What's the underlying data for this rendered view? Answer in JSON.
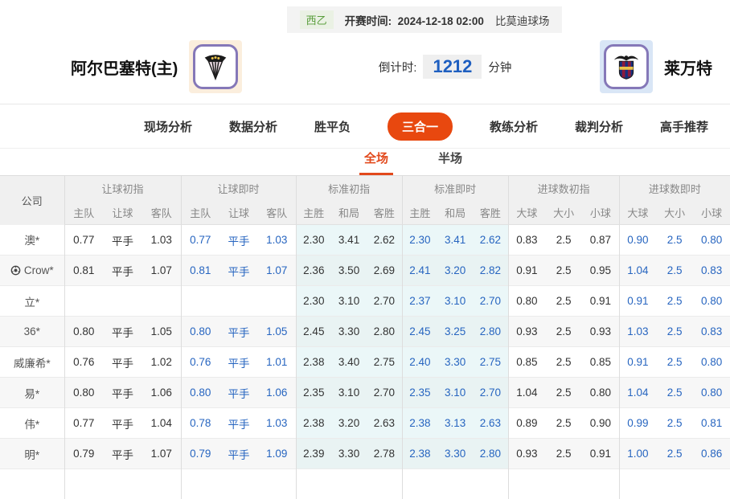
{
  "header": {
    "league": "西乙",
    "kickoff_label": "开赛时间:",
    "kickoff_time": "2024-12-18 02:00",
    "venue": "比莫迪球场"
  },
  "teams": {
    "home": {
      "name": "阿尔巴塞特(主)"
    },
    "away": {
      "name": "莱万特"
    }
  },
  "countdown": {
    "label": "倒计时:",
    "value": "1212",
    "unit": "分钟"
  },
  "nav": {
    "items": [
      {
        "key": "live-analysis",
        "label": "现场分析",
        "active": false
      },
      {
        "key": "data-analysis",
        "label": "数据分析",
        "active": false
      },
      {
        "key": "win-draw-loss",
        "label": "胜平负",
        "active": false
      },
      {
        "key": "three-in-one",
        "label": "三合一",
        "active": true
      },
      {
        "key": "coach-analysis",
        "label": "教练分析",
        "active": false
      },
      {
        "key": "referee-analysis",
        "label": "裁判分析",
        "active": false
      },
      {
        "key": "expert-picks",
        "label": "高手推荐",
        "active": false
      }
    ]
  },
  "subtabs": {
    "items": [
      {
        "key": "full-match",
        "label": "全场",
        "active": true
      },
      {
        "key": "half-match",
        "label": "半场",
        "active": false
      }
    ]
  },
  "colors": {
    "accent": "#e8480f",
    "active_tab_underline": "#e2491c",
    "link_blue": "#2765c0",
    "league_green": "#5a9e3c"
  },
  "table": {
    "company_header": "公司",
    "groups": [
      {
        "key": "handicap_initial",
        "label": "让球初指",
        "cols": [
          "主队",
          "让球",
          "客队"
        ]
      },
      {
        "key": "handicap_live",
        "label": "让球即时",
        "cols": [
          "主队",
          "让球",
          "客队"
        ]
      },
      {
        "key": "std_initial",
        "label": "标准初指",
        "cols": [
          "主胜",
          "和局",
          "客胜"
        ]
      },
      {
        "key": "std_live",
        "label": "标准即时",
        "cols": [
          "主胜",
          "和局",
          "客胜"
        ]
      },
      {
        "key": "goals_initial",
        "label": "进球数初指",
        "cols": [
          "大球",
          "大小",
          "小球"
        ]
      },
      {
        "key": "goals_live",
        "label": "进球数即时",
        "cols": [
          "大球",
          "大小",
          "小球"
        ]
      }
    ],
    "rows": [
      {
        "company": "澳*",
        "icon": false,
        "handicap_initial": [
          "0.77",
          "平手",
          "1.03"
        ],
        "handicap_live": [
          "0.77",
          "平手",
          "1.03"
        ],
        "std_initial": [
          "2.30",
          "3.41",
          "2.62"
        ],
        "std_live": [
          "2.30",
          "3.41",
          "2.62"
        ],
        "goals_initial": [
          "0.83",
          "2.5",
          "0.87"
        ],
        "goals_live": [
          "0.90",
          "2.5",
          "0.80"
        ]
      },
      {
        "company": "Crow*",
        "icon": true,
        "handicap_initial": [
          "0.81",
          "平手",
          "1.07"
        ],
        "handicap_live": [
          "0.81",
          "平手",
          "1.07"
        ],
        "std_initial": [
          "2.36",
          "3.50",
          "2.69"
        ],
        "std_live": [
          "2.41",
          "3.20",
          "2.82"
        ],
        "goals_initial": [
          "0.91",
          "2.5",
          "0.95"
        ],
        "goals_live": [
          "1.04",
          "2.5",
          "0.83"
        ]
      },
      {
        "company": "立*",
        "icon": false,
        "handicap_initial": [
          "",
          "",
          ""
        ],
        "handicap_live": [
          "",
          "",
          ""
        ],
        "std_initial": [
          "2.30",
          "3.10",
          "2.70"
        ],
        "std_live": [
          "2.37",
          "3.10",
          "2.70"
        ],
        "goals_initial": [
          "0.80",
          "2.5",
          "0.91"
        ],
        "goals_live": [
          "0.91",
          "2.5",
          "0.80"
        ]
      },
      {
        "company": "36*",
        "icon": false,
        "handicap_initial": [
          "0.80",
          "平手",
          "1.05"
        ],
        "handicap_live": [
          "0.80",
          "平手",
          "1.05"
        ],
        "std_initial": [
          "2.45",
          "3.30",
          "2.80"
        ],
        "std_live": [
          "2.45",
          "3.25",
          "2.80"
        ],
        "goals_initial": [
          "0.93",
          "2.5",
          "0.93"
        ],
        "goals_live": [
          "1.03",
          "2.5",
          "0.83"
        ]
      },
      {
        "company": "威廉希*",
        "icon": false,
        "handicap_initial": [
          "0.76",
          "平手",
          "1.02"
        ],
        "handicap_live": [
          "0.76",
          "平手",
          "1.01"
        ],
        "std_initial": [
          "2.38",
          "3.40",
          "2.75"
        ],
        "std_live": [
          "2.40",
          "3.30",
          "2.75"
        ],
        "goals_initial": [
          "0.85",
          "2.5",
          "0.85"
        ],
        "goals_live": [
          "0.91",
          "2.5",
          "0.80"
        ]
      },
      {
        "company": "易*",
        "icon": false,
        "handicap_initial": [
          "0.80",
          "平手",
          "1.06"
        ],
        "handicap_live": [
          "0.80",
          "平手",
          "1.06"
        ],
        "std_initial": [
          "2.35",
          "3.10",
          "2.70"
        ],
        "std_live": [
          "2.35",
          "3.10",
          "2.70"
        ],
        "goals_initial": [
          "1.04",
          "2.5",
          "0.80"
        ],
        "goals_live": [
          "1.04",
          "2.5",
          "0.80"
        ]
      },
      {
        "company": "伟*",
        "icon": false,
        "handicap_initial": [
          "0.77",
          "平手",
          "1.04"
        ],
        "handicap_live": [
          "0.78",
          "平手",
          "1.03"
        ],
        "std_initial": [
          "2.38",
          "3.20",
          "2.63"
        ],
        "std_live": [
          "2.38",
          "3.13",
          "2.63"
        ],
        "goals_initial": [
          "0.89",
          "2.5",
          "0.90"
        ],
        "goals_live": [
          "0.99",
          "2.5",
          "0.81"
        ]
      },
      {
        "company": "明*",
        "icon": false,
        "handicap_initial": [
          "0.79",
          "平手",
          "1.07"
        ],
        "handicap_live": [
          "0.79",
          "平手",
          "1.09"
        ],
        "std_initial": [
          "2.39",
          "3.30",
          "2.78"
        ],
        "std_live": [
          "2.38",
          "3.30",
          "2.80"
        ],
        "goals_initial": [
          "0.93",
          "2.5",
          "0.91"
        ],
        "goals_live": [
          "1.00",
          "2.5",
          "0.86"
        ]
      }
    ]
  }
}
